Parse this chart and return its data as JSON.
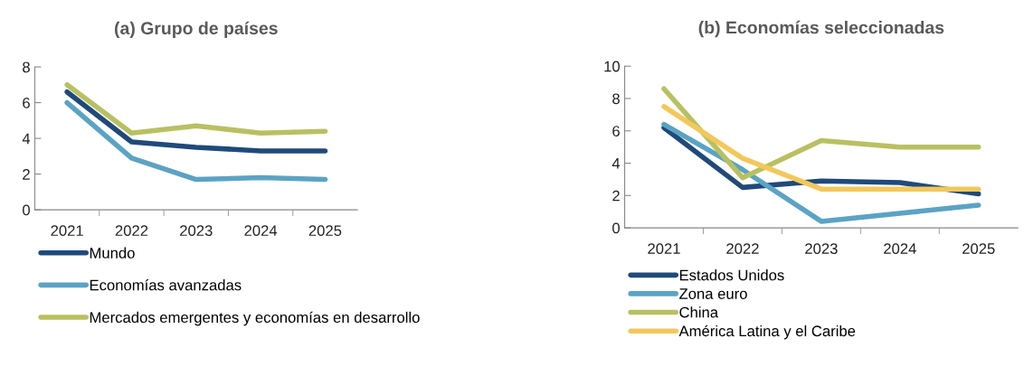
{
  "chart_data": [
    {
      "type": "line",
      "title": "(a) Grupo de países",
      "categories": [
        "2021",
        "2022",
        "2023",
        "2024",
        "2025"
      ],
      "ylim": [
        0,
        8
      ],
      "yticks": [
        0,
        2,
        4,
        6,
        8
      ],
      "legend": "bottom",
      "grid": false,
      "series": [
        {
          "name": "Mundo",
          "color": "#1f4a7a",
          "values": [
            6.6,
            3.8,
            3.5,
            3.3,
            3.3
          ]
        },
        {
          "name": "Economías avanzadas",
          "color": "#5ba3c4",
          "values": [
            6.0,
            2.9,
            1.7,
            1.8,
            1.7
          ]
        },
        {
          "name": "Mercados emergentes y economías en desarrollo",
          "color": "#b9c061",
          "values": [
            7.0,
            4.3,
            4.7,
            4.3,
            4.4
          ]
        }
      ]
    },
    {
      "type": "line",
      "title": "(b) Economías seleccionadas",
      "categories": [
        "2021",
        "2022",
        "2023",
        "2024",
        "2025"
      ],
      "ylim": [
        0,
        10
      ],
      "yticks": [
        0,
        2,
        4,
        6,
        8,
        10
      ],
      "legend": "bottom",
      "grid": false,
      "series": [
        {
          "name": "Estados Unidos",
          "color": "#1f4a7a",
          "values": [
            6.2,
            2.5,
            2.9,
            2.8,
            2.1
          ]
        },
        {
          "name": "Zona euro",
          "color": "#5ba3c4",
          "values": [
            6.4,
            3.6,
            0.4,
            0.9,
            1.4
          ]
        },
        {
          "name": "China",
          "color": "#b9c061",
          "values": [
            8.6,
            3.1,
            5.4,
            5.0,
            5.0
          ]
        },
        {
          "name": "América Latina y el Caribe",
          "color": "#f2c85b",
          "values": [
            7.5,
            4.3,
            2.4,
            2.4,
            2.4
          ]
        }
      ]
    }
  ]
}
